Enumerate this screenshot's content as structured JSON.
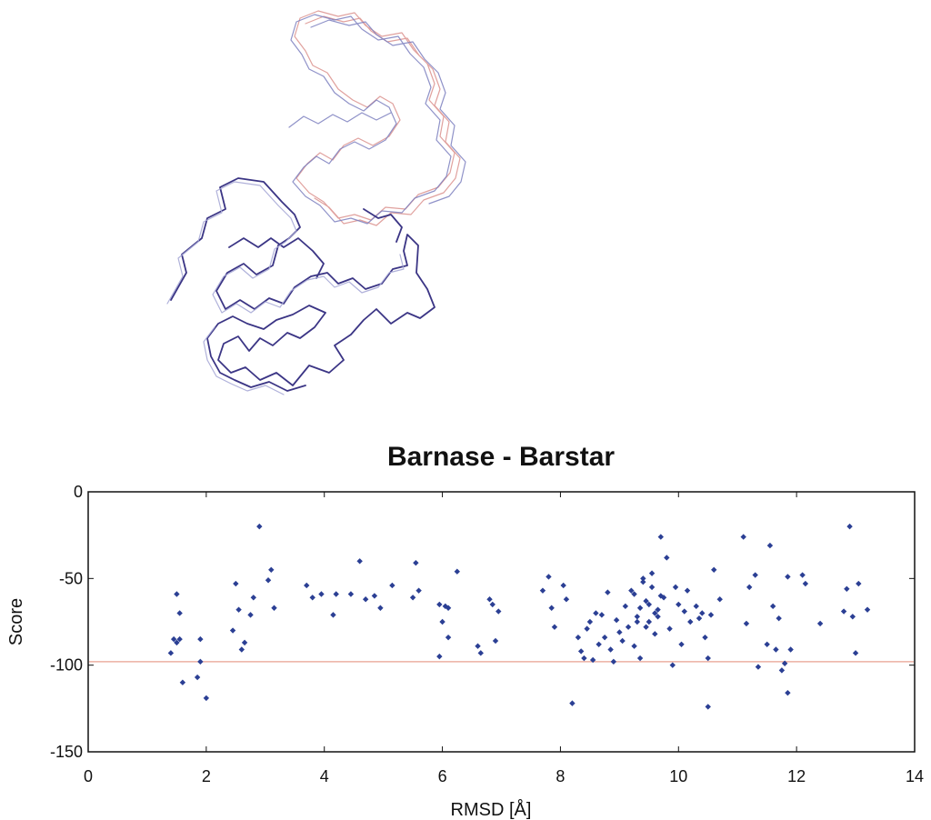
{
  "chart_data": {
    "type": "scatter",
    "title": "Barnase - Barstar",
    "xlabel": "RMSD [Å]",
    "ylabel": "Score",
    "xlim": [
      0,
      14
    ],
    "ylim": [
      -150,
      0
    ],
    "xticks": [
      0,
      2,
      4,
      6,
      8,
      10,
      12,
      14
    ],
    "yticks": [
      0,
      -50,
      -100,
      -150
    ],
    "grid": false,
    "reference_line": {
      "y": -98,
      "color": "#e8a090"
    },
    "marker_color": "#2b3f94",
    "points": [
      [
        1.4,
        -93
      ],
      [
        1.45,
        -85
      ],
      [
        1.5,
        -87
      ],
      [
        1.55,
        -85
      ],
      [
        1.5,
        -59
      ],
      [
        1.55,
        -70
      ],
      [
        1.6,
        -110
      ],
      [
        1.85,
        -107
      ],
      [
        1.9,
        -85
      ],
      [
        1.9,
        -98
      ],
      [
        2.0,
        -119
      ],
      [
        2.45,
        -80
      ],
      [
        2.5,
        -53
      ],
      [
        2.55,
        -68
      ],
      [
        2.6,
        -91
      ],
      [
        2.65,
        -87
      ],
      [
        2.75,
        -71
      ],
      [
        2.8,
        -61
      ],
      [
        2.9,
        -20
      ],
      [
        3.05,
        -51
      ],
      [
        3.1,
        -45
      ],
      [
        3.15,
        -67
      ],
      [
        3.7,
        -54
      ],
      [
        3.8,
        -61
      ],
      [
        3.95,
        -59
      ],
      [
        4.15,
        -71
      ],
      [
        4.2,
        -59
      ],
      [
        4.45,
        -59
      ],
      [
        4.6,
        -40
      ],
      [
        4.7,
        -62
      ],
      [
        4.85,
        -60
      ],
      [
        4.95,
        -67
      ],
      [
        5.15,
        -54
      ],
      [
        5.5,
        -61
      ],
      [
        5.55,
        -41
      ],
      [
        5.6,
        -57
      ],
      [
        5.95,
        -65
      ],
      [
        5.95,
        -95
      ],
      [
        6.0,
        -75
      ],
      [
        6.05,
        -66
      ],
      [
        6.1,
        -67
      ],
      [
        6.1,
        -84
      ],
      [
        6.25,
        -46
      ],
      [
        6.6,
        -89
      ],
      [
        6.65,
        -93
      ],
      [
        6.8,
        -62
      ],
      [
        6.85,
        -65
      ],
      [
        6.9,
        -86
      ],
      [
        6.95,
        -69
      ],
      [
        7.7,
        -57
      ],
      [
        7.8,
        -49
      ],
      [
        7.85,
        -67
      ],
      [
        7.9,
        -78
      ],
      [
        8.05,
        -54
      ],
      [
        8.1,
        -62
      ],
      [
        8.2,
        -122
      ],
      [
        8.3,
        -84
      ],
      [
        8.35,
        -92
      ],
      [
        8.4,
        -96
      ],
      [
        8.45,
        -79
      ],
      [
        8.5,
        -75
      ],
      [
        8.55,
        -97
      ],
      [
        8.6,
        -70
      ],
      [
        8.65,
        -88
      ],
      [
        8.7,
        -71
      ],
      [
        8.75,
        -84
      ],
      [
        8.8,
        -58
      ],
      [
        8.85,
        -91
      ],
      [
        8.9,
        -98
      ],
      [
        8.95,
        -74
      ],
      [
        9.0,
        -81
      ],
      [
        9.05,
        -86
      ],
      [
        9.1,
        -66
      ],
      [
        9.15,
        -78
      ],
      [
        9.2,
        -57
      ],
      [
        9.25,
        -89
      ],
      [
        9.3,
        -72
      ],
      [
        9.35,
        -96
      ],
      [
        9.4,
        -50
      ],
      [
        9.45,
        -63
      ],
      [
        9.5,
        -75
      ],
      [
        9.55,
        -47
      ],
      [
        9.6,
        -82
      ],
      [
        9.65,
        -68
      ],
      [
        9.7,
        -26
      ],
      [
        9.75,
        -61
      ],
      [
        9.8,
        -38
      ],
      [
        9.85,
        -79
      ],
      [
        9.9,
        -100
      ],
      [
        9.95,
        -55
      ],
      [
        10.0,
        -65
      ],
      [
        10.05,
        -88
      ],
      [
        10.1,
        -69
      ],
      [
        10.15,
        -57
      ],
      [
        10.2,
        -75
      ],
      [
        10.3,
        -66
      ],
      [
        10.35,
        -73
      ],
      [
        10.4,
        -70
      ],
      [
        10.45,
        -84
      ],
      [
        10.5,
        -96
      ],
      [
        10.5,
        -124
      ],
      [
        10.55,
        -71
      ],
      [
        10.6,
        -45
      ],
      [
        10.7,
        -62
      ],
      [
        11.1,
        -26
      ],
      [
        11.15,
        -76
      ],
      [
        11.2,
        -55
      ],
      [
        11.3,
        -48
      ],
      [
        11.35,
        -101
      ],
      [
        11.5,
        -88
      ],
      [
        11.55,
        -31
      ],
      [
        11.6,
        -66
      ],
      [
        11.65,
        -91
      ],
      [
        11.7,
        -73
      ],
      [
        11.75,
        -103
      ],
      [
        11.8,
        -99
      ],
      [
        11.85,
        -116
      ],
      [
        11.85,
        -49
      ],
      [
        11.9,
        -91
      ],
      [
        12.1,
        -48
      ],
      [
        12.15,
        -53
      ],
      [
        12.4,
        -76
      ],
      [
        12.8,
        -69
      ],
      [
        12.85,
        -56
      ],
      [
        12.9,
        -20
      ],
      [
        12.95,
        -72
      ],
      [
        13.0,
        -93
      ],
      [
        13.05,
        -53
      ],
      [
        13.2,
        -68
      ],
      [
        9.3,
        -75
      ],
      [
        9.4,
        -52
      ],
      [
        9.5,
        -65
      ],
      [
        9.6,
        -70
      ],
      [
        9.7,
        -60
      ],
      [
        9.45,
        -78
      ],
      [
        9.55,
        -55
      ],
      [
        9.35,
        -67
      ],
      [
        9.65,
        -72
      ],
      [
        9.25,
        -59
      ]
    ]
  }
}
